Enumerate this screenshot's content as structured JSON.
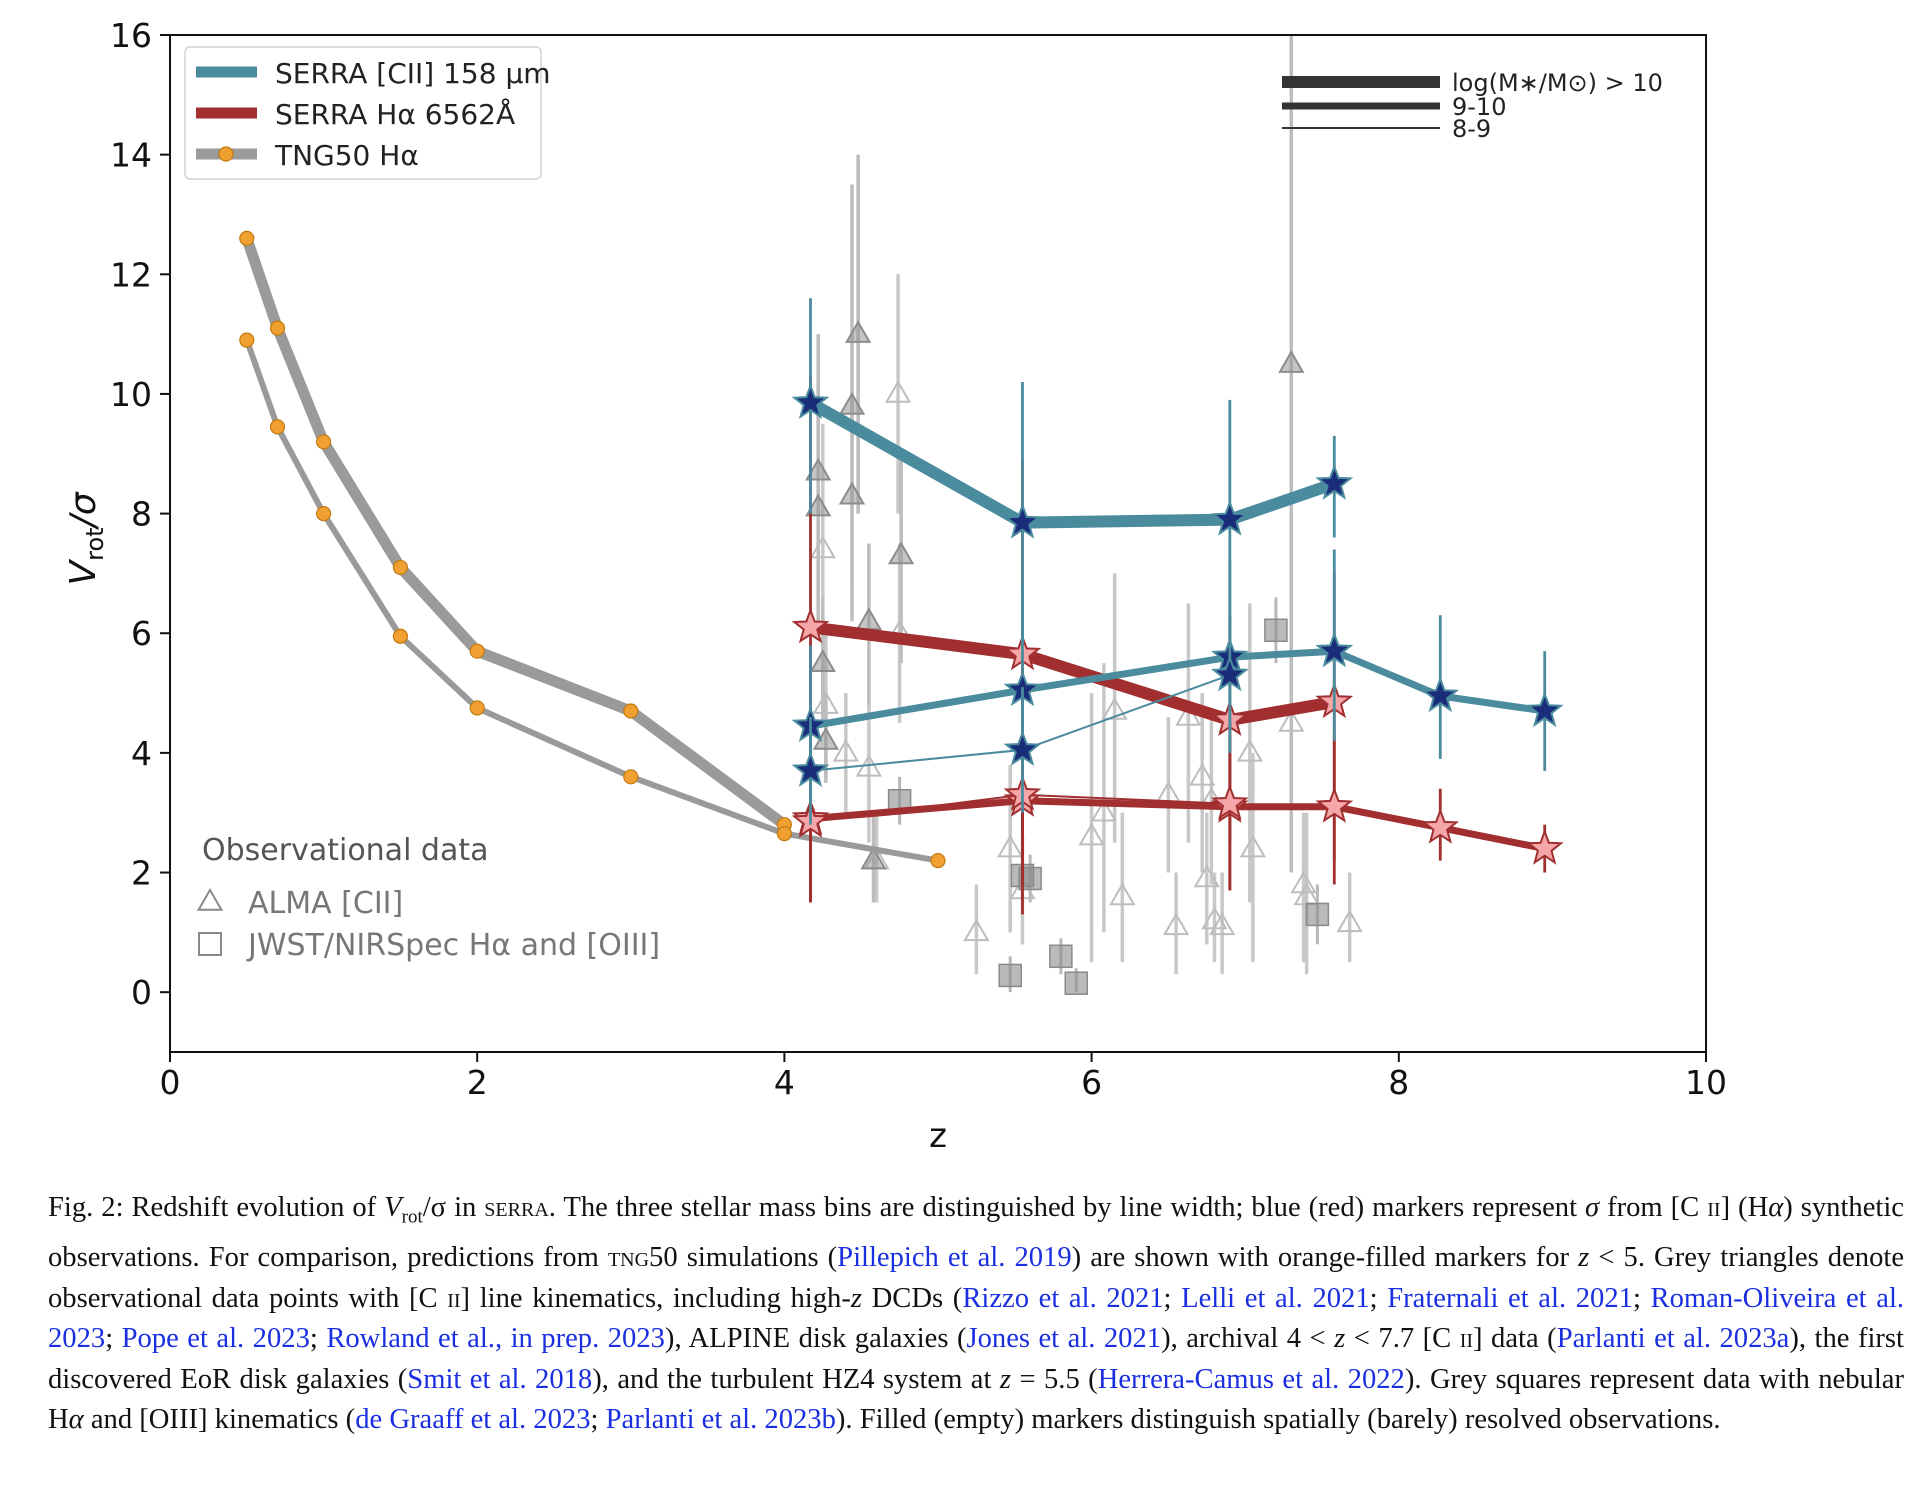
{
  "chart_data": {
    "type": "line",
    "xlabel": "z",
    "ylabel": "V_rot/σ",
    "xlim": [
      0,
      10
    ],
    "ylim": [
      -1,
      16
    ],
    "xticks": [
      0,
      2,
      4,
      6,
      8,
      10
    ],
    "yticks": [
      0,
      2,
      4,
      6,
      8,
      10,
      12,
      14,
      16
    ],
    "grid": false,
    "legend": {
      "placement": "top-left",
      "entries": [
        {
          "label": "SERRA [CII] 158 µm",
          "color": "#4a8b9d"
        },
        {
          "label": "SERRA Hα 6562Å",
          "color": "#a12f2f"
        },
        {
          "label": "TNG50 Hα",
          "color": "#9a9a9a",
          "marker": "#f0a030"
        }
      ]
    },
    "mass_legend": {
      "placement": "top-right",
      "entries": [
        {
          "label": "log(M∗/M⊙) > 10"
        },
        {
          "label": "9-10"
        },
        {
          "label": "8-9"
        }
      ]
    },
    "obs_legend": {
      "placement": "lower-left",
      "title": "Observational data",
      "entries": [
        {
          "label": "ALMA [CII]",
          "marker": "triangle"
        },
        {
          "label": "JWST/NIRSpec Hα and [OIII]",
          "marker": "square"
        }
      ]
    },
    "series": [
      {
        "group": "SERRA [CII]",
        "bin": ">10",
        "color": "#4a8b9d",
        "x": [
          4.17,
          5.55,
          6.9,
          7.58
        ],
        "y": [
          9.85,
          7.85,
          7.9,
          8.5
        ],
        "err": [
          [
            8.0,
            11.6
          ],
          [
            5.8,
            10.2
          ],
          [
            5.9,
            9.9
          ],
          [
            7.6,
            9.3
          ]
        ]
      },
      {
        "group": "SERRA [CII]",
        "bin": "9-10",
        "color": "#4a8b9d",
        "x": [
          4.17,
          5.55,
          6.9,
          7.58,
          8.27,
          8.95
        ],
        "y": [
          4.45,
          5.05,
          5.6,
          5.7,
          4.95,
          4.7
        ],
        "err": [
          [
            3.2,
            5.8
          ],
          [
            3.8,
            6.8
          ],
          [
            4.0,
            7.2
          ],
          [
            4.2,
            7.4
          ],
          [
            3.9,
            6.3
          ],
          [
            3.7,
            5.7
          ]
        ]
      },
      {
        "group": "SERRA [CII]",
        "bin": "8-9",
        "color": "#4a8b9d",
        "x": [
          4.17,
          5.55,
          6.9
        ],
        "y": [
          3.7,
          4.05,
          5.3
        ],
        "err": [
          [
            2.8,
            4.6
          ],
          [
            3.0,
            5.1
          ],
          [
            4.4,
            6.2
          ]
        ]
      },
      {
        "group": "SERRA Hα",
        "bin": ">10",
        "color": "#a12f2f",
        "x": [
          4.17,
          5.55,
          6.9,
          7.58
        ],
        "y": [
          6.1,
          5.65,
          4.55,
          4.85
        ],
        "err": [
          [
            1.5,
            10.3
          ],
          [
            1.3,
            8.9
          ],
          [
            2.5,
            6.3
          ],
          [
            2.2,
            7.0
          ]
        ]
      },
      {
        "group": "SERRA Hα",
        "bin": "9-10",
        "color": "#a12f2f",
        "x": [
          4.17,
          5.55,
          6.9,
          7.58,
          8.27,
          8.95
        ],
        "y": [
          2.9,
          3.2,
          3.1,
          3.1,
          2.75,
          2.4
        ],
        "err": [
          [
            1.6,
            4.5
          ],
          [
            1.8,
            4.3
          ],
          [
            1.7,
            4.3
          ],
          [
            1.8,
            4.3
          ],
          [
            2.2,
            3.4
          ],
          [
            2.0,
            2.8
          ]
        ]
      },
      {
        "group": "SERRA Hα",
        "bin": "8-9",
        "color": "#a12f2f",
        "x": [
          4.17,
          5.55,
          6.9
        ],
        "y": [
          2.85,
          3.3,
          3.15
        ],
        "err": [
          [
            1.5,
            4.4
          ],
          [
            1.8,
            4.6
          ],
          [
            1.7,
            4.5
          ]
        ]
      },
      {
        "group": "TNG50 Hα",
        "bin": ">10",
        "color": "#9a9a9a",
        "x": [
          0.5,
          0.7,
          1.0,
          1.5,
          2.0,
          3.0,
          4.0
        ],
        "y": [
          12.6,
          11.1,
          9.2,
          7.1,
          5.7,
          4.7,
          2.8
        ]
      },
      {
        "group": "TNG50 Hα",
        "bin": "9-10",
        "color": "#9a9a9a",
        "x": [
          0.5,
          0.7,
          1.0,
          1.5,
          2.0,
          3.0,
          4.0,
          5.0
        ],
        "y": [
          10.9,
          9.45,
          8.0,
          5.95,
          4.75,
          3.6,
          2.65,
          2.2
        ]
      }
    ],
    "observations": {
      "alma_filled": [
        {
          "x": 4.22,
          "y": 8.7,
          "err": [
            6.5,
            11.0
          ]
        },
        {
          "x": 4.22,
          "y": 8.1,
          "err": [
            6.0,
            10.2
          ]
        },
        {
          "x": 4.25,
          "y": 5.5,
          "err": [
            4.5,
            6.6
          ]
        },
        {
          "x": 4.27,
          "y": 4.2,
          "err": [
            3.5,
            5.0
          ]
        },
        {
          "x": 4.44,
          "y": 9.8,
          "err": [
            6.2,
            13.5
          ]
        },
        {
          "x": 4.44,
          "y": 8.3,
          "err": [
            6.8,
            10.0
          ]
        },
        {
          "x": 4.48,
          "y": 11.0,
          "err": [
            8.0,
            14.0
          ]
        },
        {
          "x": 4.55,
          "y": 6.2,
          "err": [
            4.8,
            7.5
          ]
        },
        {
          "x": 4.58,
          "y": 2.2,
          "err": [
            1.5,
            3.0
          ]
        },
        {
          "x": 4.76,
          "y": 7.3,
          "err": [
            5.5,
            9.0
          ]
        },
        {
          "x": 7.3,
          "y": 10.5,
          "err": [
            2.0,
            16.0
          ]
        }
      ],
      "alma_open": [
        {
          "x": 4.25,
          "y": 7.4,
          "err": [
            5.0,
            9.5
          ]
        },
        {
          "x": 4.27,
          "y": 4.8,
          "err": [
            3.5,
            6.0
          ]
        },
        {
          "x": 4.4,
          "y": 4.0,
          "err": [
            3.0,
            5.0
          ]
        },
        {
          "x": 4.55,
          "y": 3.75,
          "err": [
            2.5,
            5.0
          ]
        },
        {
          "x": 4.6,
          "y": 2.2,
          "err": [
            1.5,
            3.0
          ]
        },
        {
          "x": 4.74,
          "y": 10.0,
          "err": [
            8.0,
            12.0
          ]
        },
        {
          "x": 4.75,
          "y": 6.0,
          "err": [
            4.5,
            7.5
          ]
        },
        {
          "x": 5.25,
          "y": 1.0,
          "err": [
            0.3,
            1.8
          ]
        },
        {
          "x": 5.47,
          "y": 2.4,
          "err": [
            1.0,
            3.8
          ]
        },
        {
          "x": 5.55,
          "y": 1.7,
          "err": [
            0.8,
            2.6
          ]
        },
        {
          "x": 6.0,
          "y": 2.6,
          "err": [
            0.5,
            5.0
          ]
        },
        {
          "x": 6.08,
          "y": 3.0,
          "err": [
            1.0,
            5.5
          ]
        },
        {
          "x": 6.15,
          "y": 4.7,
          "err": [
            2.5,
            7.0
          ]
        },
        {
          "x": 6.2,
          "y": 1.6,
          "err": [
            0.5,
            3.0
          ]
        },
        {
          "x": 6.5,
          "y": 3.3,
          "err": [
            2.0,
            4.6
          ]
        },
        {
          "x": 6.55,
          "y": 1.1,
          "err": [
            0.3,
            2.0
          ]
        },
        {
          "x": 6.63,
          "y": 4.6,
          "err": [
            2.5,
            6.5
          ]
        },
        {
          "x": 6.72,
          "y": 3.6,
          "err": [
            2.0,
            5.0
          ]
        },
        {
          "x": 6.75,
          "y": 1.9,
          "err": [
            0.8,
            3.0
          ]
        },
        {
          "x": 6.78,
          "y": 3.2,
          "err": [
            1.8,
            4.6
          ]
        },
        {
          "x": 6.8,
          "y": 1.2,
          "err": [
            0.5,
            2.0
          ]
        },
        {
          "x": 6.85,
          "y": 1.1,
          "err": [
            0.3,
            2.0
          ]
        },
        {
          "x": 7.03,
          "y": 4.0,
          "err": [
            1.5,
            6.5
          ]
        },
        {
          "x": 7.05,
          "y": 2.4,
          "err": [
            0.5,
            4.0
          ]
        },
        {
          "x": 7.3,
          "y": 4.5,
          "err": [
            2.0,
            7.0
          ]
        },
        {
          "x": 7.38,
          "y": 1.8,
          "err": [
            0.5,
            3.0
          ]
        },
        {
          "x": 7.4,
          "y": 1.6,
          "err": [
            0.3,
            3.0
          ]
        },
        {
          "x": 7.68,
          "y": 1.15,
          "err": [
            0.5,
            2.0
          ]
        }
      ],
      "jwst_squares": [
        {
          "x": 4.75,
          "y": 3.2,
          "err": [
            2.8,
            3.6
          ]
        },
        {
          "x": 5.55,
          "y": 1.95,
          "err": [
            1.5,
            2.4
          ]
        },
        {
          "x": 5.6,
          "y": 1.9,
          "err": [
            1.5,
            2.3
          ]
        },
        {
          "x": 5.47,
          "y": 0.28,
          "err": [
            0.0,
            0.6
          ]
        },
        {
          "x": 5.8,
          "y": 0.6,
          "err": [
            0.3,
            0.9
          ]
        },
        {
          "x": 5.9,
          "y": 0.15,
          "err": [
            0.0,
            0.4
          ]
        },
        {
          "x": 7.2,
          "y": 6.05,
          "err": [
            5.5,
            6.6
          ]
        },
        {
          "x": 7.47,
          "y": 1.3,
          "err": [
            0.8,
            1.8
          ]
        }
      ]
    }
  },
  "caption": {
    "fig_label": "Fig. 2: Redshift evolution of",
    "v": "V",
    "vsub": "rot",
    "slash_sigma": "/σ in",
    "serra": "serra",
    "s1": ". The three stellar mass bins are distinguished by line width; blue (red) markers represent",
    "sigma1": "σ",
    "s2": "from [C",
    "ii1": "ii",
    "s3": "] (H",
    "alpha1": "α",
    "s4": ") synthetic observations. For comparison, predictions from",
    "tng": "tng50",
    "s5": "simulations (",
    "r_pillepich": "Pillepich et al. 2019",
    "s6": ") are shown with orange-filled markers for",
    "z1": "z",
    "s7": "< 5. Grey triangles denote observational data points with [C",
    "ii2": "ii",
    "s8": "] line kinematics, including high-",
    "z2": "z",
    "s9": "DCDs (",
    "r_rizzo": "Rizzo et al. 2021",
    "sc1": "; ",
    "r_lelli": "Lelli et al. 2021",
    "sc2": "; ",
    "r_frat": "Fraternali et al. 2021",
    "sc3": "; ",
    "r_roman": "Roman-Oliveira et al. 2023",
    "sc4": "; ",
    "r_pope": "Pope et al. 2023",
    "sc5": "; ",
    "r_rowland": "Rowland et al., in prep. 2023",
    "s10": "), ALPINE disk galaxies (",
    "r_jones": "Jones et al. 2021",
    "s11": "), archival 4 <",
    "z3": "z",
    "s12": "< 7.7 [C",
    "ii3": "ii",
    "s13": "] data (",
    "r_parlanti_a": "Parlanti et al. 2023a",
    "s14": "), the first discovered EoR disk galaxies (",
    "r_smit": "Smit et al. 2018",
    "s15": "), and the turbulent HZ4 system at",
    "z4": "z",
    "s16": "= 5.5 (",
    "r_herrera": "Herrera-Camus et al. 2022",
    "s17": "). Grey squares represent data with nebular H",
    "alpha2": "α",
    "s18": "and [OIII] kinematics (",
    "r_degraaff": "de Graaff et al. 2023",
    "sc6": "; ",
    "r_parlanti_b": "Parlanti et al. 2023b",
    "s19": "). Filled (empty) markers distinguish spatially (barely) resolved observations."
  }
}
